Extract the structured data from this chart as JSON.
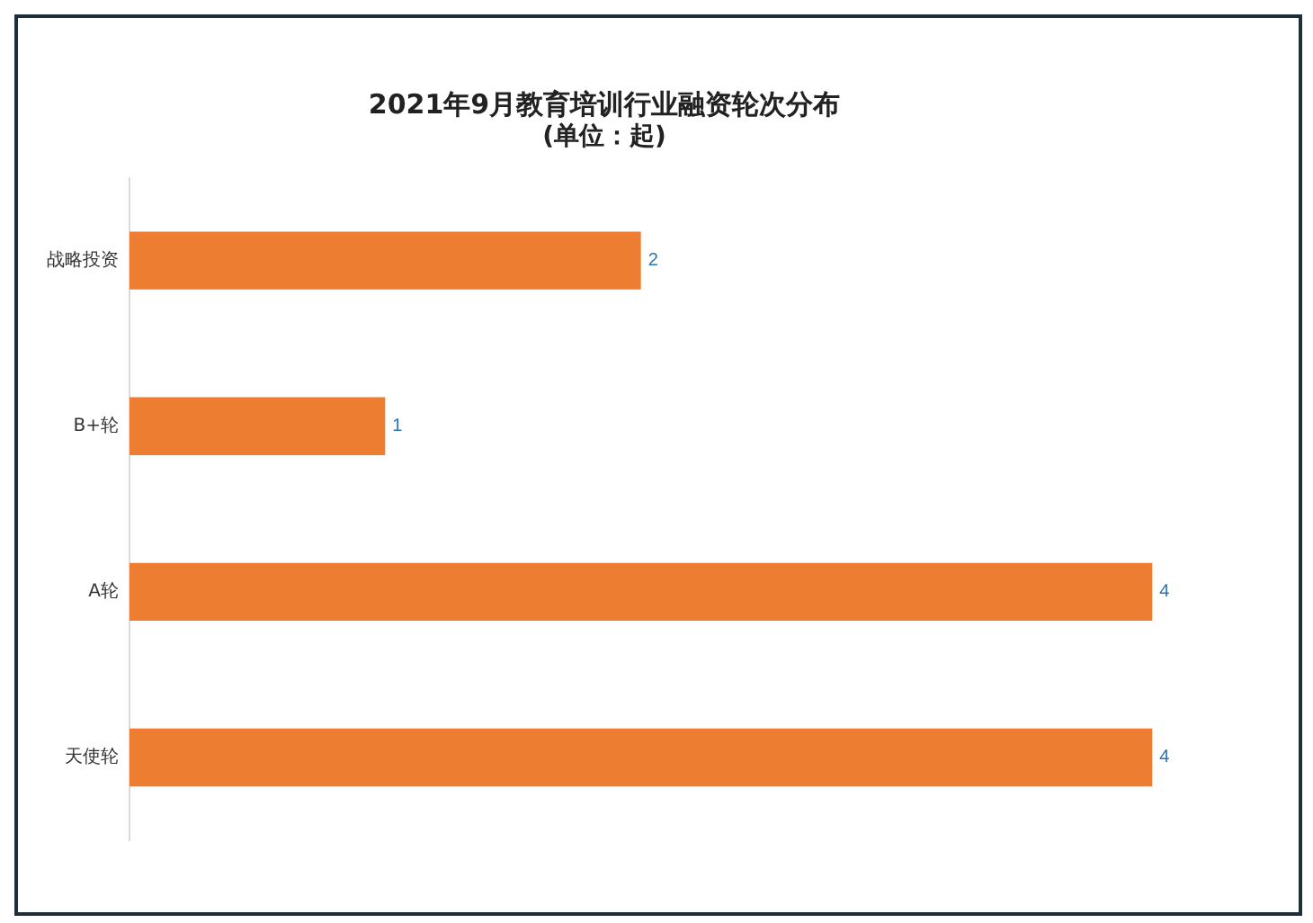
{
  "chart_data": {
    "type": "bar",
    "orientation": "horizontal",
    "title": "2021年9月教育培训行业融资轮次分布",
    "subtitle": "(单位：起)",
    "categories": [
      "战略投资",
      "B+轮",
      "A轮",
      "天使轮"
    ],
    "values": [
      2,
      1,
      4,
      4
    ],
    "color": "#ed7d31",
    "data_labels": true,
    "grid": false,
    "legend": false,
    "tick_labels": "y"
  }
}
